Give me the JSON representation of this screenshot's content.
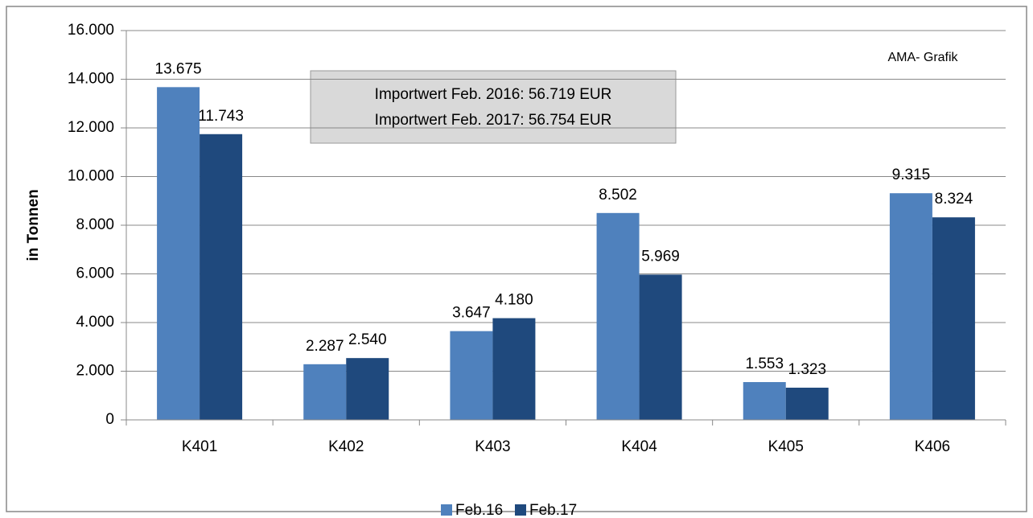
{
  "chart_data": {
    "type": "bar",
    "y_label": "in Tonnen",
    "annotations": [
      "Importwert Feb. 2016: 56.719 EUR",
      "Importwert Feb. 2017: 56.754 EUR",
      "AMA- Grafik"
    ],
    "categories": [
      "K401",
      "K402",
      "K403",
      "K404",
      "K405",
      "K406"
    ],
    "series": [
      {
        "name": "Feb.16",
        "color": "#4f81bd",
        "values": [
          13675,
          2287,
          3647,
          8502,
          1553,
          9315
        ],
        "value_labels": [
          "13.675",
          "2.287",
          "3.647",
          "8.502",
          "1.553",
          "9.315"
        ]
      },
      {
        "name": "Feb.17",
        "color": "#1f497d",
        "values": [
          11743,
          2540,
          4180,
          5969,
          1323,
          8324
        ],
        "value_labels": [
          "11.743",
          "2.540",
          "4.180",
          "5.969",
          "1.323",
          "8.324"
        ]
      }
    ],
    "ylim": [
      0,
      16000
    ],
    "yticks": [
      0,
      {
        "value": 2000,
        "label": "2.000"
      },
      {
        "value": 4000,
        "label": "4.000"
      },
      {
        "value": 6000,
        "label": "6.000"
      },
      {
        "value": 8000,
        "label": "8.000"
      },
      {
        "value": 10000,
        "label": "10.000"
      },
      {
        "value": 12000,
        "label": "12.000"
      },
      {
        "value": 14000,
        "label": "14.000"
      },
      {
        "value": 16000,
        "label": "16.000"
      }
    ],
    "grid": true,
    "legend": "bottom"
  }
}
